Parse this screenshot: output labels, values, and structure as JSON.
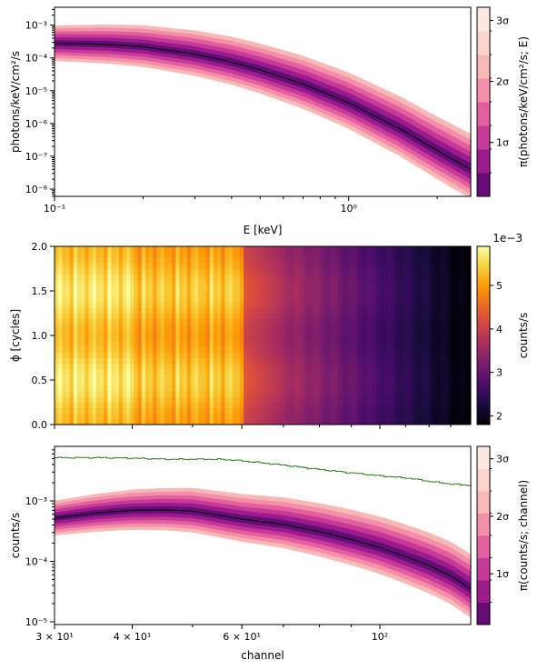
{
  "chart_data": [
    {
      "type": "area",
      "panel": "spectrum",
      "xlabel": "E [keV]",
      "ylabel": "photons/keV/cm²/s",
      "x_scale": "log",
      "y_scale": "log",
      "xlim": [
        0.1,
        2.6
      ],
      "ylim": [
        6e-09,
        0.0035
      ],
      "x_ticks": [
        {
          "value": 0.1,
          "label": "10⁻¹"
        },
        {
          "value": 1,
          "label": "10⁰"
        }
      ],
      "y_ticks": [
        {
          "value": 1e-08,
          "label": "10⁻⁸"
        },
        {
          "value": 1e-07,
          "label": "10⁻⁷"
        },
        {
          "value": 1e-06,
          "label": "10⁻⁶"
        },
        {
          "value": 1e-05,
          "label": "10⁻⁵"
        },
        {
          "value": 0.0001,
          "label": "10⁻⁴"
        },
        {
          "value": 0.001,
          "label": "10⁻³"
        }
      ],
      "median": {
        "x": [
          0.1,
          0.15,
          0.2,
          0.3,
          0.4,
          0.5,
          0.7,
          1.0,
          1.5,
          2.0,
          2.6
        ],
        "y": [
          0.00028,
          0.00026,
          0.00022,
          0.00013,
          7.5e-05,
          4.3e-05,
          1.6e-05,
          4.3e-06,
          6.8e-07,
          1.5e-07,
          4e-08
        ]
      },
      "credible_band_half_width_log10": [
        0.15,
        0.3,
        0.45,
        0.6,
        0.75,
        0.9
      ],
      "colorbar": {
        "label": "π(photons/keV/cm²/s; E)",
        "tick_labels": [
          "1σ",
          "2σ",
          "3σ"
        ],
        "levels": 8
      }
    },
    {
      "type": "heatmap",
      "panel": "phase-resolved counts",
      "ylabel": "ϕ [cycles]",
      "x_scale": "log",
      "xlim": [
        30,
        140
      ],
      "ylim": [
        0,
        2
      ],
      "y_ticks": [
        "0.0",
        "0.5",
        "1.0",
        "1.5",
        "2.0"
      ],
      "colorbar": {
        "label": "counts/s",
        "scale_note": "1e−3",
        "range": [
          1.8,
          5.9
        ],
        "tick_labels": [
          "2",
          "3",
          "4",
          "5"
        ]
      },
      "description": "counts/s vs channel and phase; bright (≈5.5e-3) at low channels, dark (≈1.8e-3) above channel ~100, with weak phase modulation peaking near ϕ≈0.5 and 1.5"
    },
    {
      "type": "area",
      "panel": "counts spectrum",
      "xlabel": "channel",
      "ylabel": "counts/s",
      "x_scale": "log",
      "y_scale": "log",
      "xlim": [
        30,
        140
      ],
      "ylim": [
        9e-06,
        0.008
      ],
      "x_ticks": [
        {
          "value": 30,
          "label": "3 × 10¹"
        },
        {
          "value": 40,
          "label": "4 × 10¹"
        },
        {
          "value": 60,
          "label": "6 × 10¹"
        },
        {
          "value": 100,
          "label": "10²"
        }
      ],
      "y_ticks": [
        {
          "value": 1e-05,
          "label": "10⁻⁵"
        },
        {
          "value": 0.0001,
          "label": "10⁻⁴"
        },
        {
          "value": 0.001,
          "label": "10⁻³"
        }
      ],
      "median": {
        "x": [
          30,
          35,
          40,
          45,
          50,
          55,
          60,
          70,
          80,
          90,
          100,
          110,
          120,
          130,
          140
        ],
        "y": [
          0.00052,
          0.00063,
          0.0007,
          0.00071,
          0.00068,
          0.00058,
          0.0005,
          0.00041,
          0.00031,
          0.00023,
          0.00017,
          0.00012,
          8.5e-05,
          5.8e-05,
          3.5e-05
        ]
      },
      "credible_band_half_width_log10": [
        0.08,
        0.16,
        0.24,
        0.32,
        0.4,
        0.48
      ],
      "data_step": {
        "color": "#2e7d1e",
        "x": [
          30,
          35,
          40,
          45,
          50,
          55,
          60,
          70,
          80,
          90,
          100,
          110,
          120,
          130,
          140
        ],
        "y": [
          0.0052,
          0.0052,
          0.0051,
          0.0049,
          0.0049,
          0.0049,
          0.0046,
          0.0039,
          0.0033,
          0.0029,
          0.0026,
          0.0024,
          0.0021,
          0.0019,
          0.0018
        ]
      },
      "colorbar": {
        "label": "π(counts/s; channel)",
        "tick_labels": [
          "1σ",
          "2σ",
          "3σ"
        ],
        "levels": 8
      }
    }
  ],
  "colors": {
    "band_levels": [
      "#fde7e2",
      "#fbd3cc",
      "#f8b8b5",
      "#f38fa9",
      "#e45fa0",
      "#c43a96",
      "#9b1a8c",
      "#650c79"
    ],
    "median_line": "#000000",
    "heatmap_stops": [
      "#000004",
      "#1b0c41",
      "#4a0c6b",
      "#781c6d",
      "#a52c60",
      "#cf4446",
      "#ed6925",
      "#fb9b06",
      "#f7d13d",
      "#fcffa4"
    ]
  }
}
